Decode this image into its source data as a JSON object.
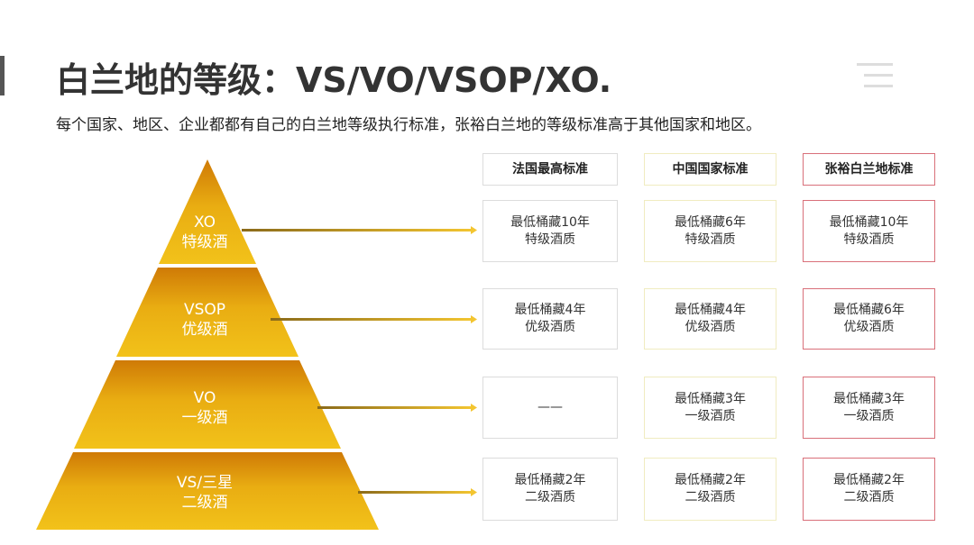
{
  "title": "白兰地的等级：VS/VO/VSOP/XO.",
  "subtitle": "每个国家、地区、企业都都有自己的白兰地等级执行标准，张裕白兰地的等级标准高于其他国家和地区。",
  "colors": {
    "pyramid_top": "#cf7a06",
    "pyramid_bottom": "#f2c21a",
    "china_border": "#f0ecc0",
    "zhangyu_border": "#d9707a"
  },
  "tiers": [
    {
      "grade": "XO",
      "name": "特级酒"
    },
    {
      "grade": "VSOP",
      "name": "优级酒"
    },
    {
      "grade": "VO",
      "name": "一级酒"
    },
    {
      "grade": "VS/三星",
      "name": "二级酒"
    }
  ],
  "columns": [
    "法国最高标准",
    "中国国家标准",
    "张裕白兰地标准"
  ],
  "rows": [
    [
      {
        "l1": "最低桶藏10年",
        "l2": "特级酒质"
      },
      {
        "l1": "最低桶藏6年",
        "l2": "特级酒质"
      },
      {
        "l1": "最低桶藏10年",
        "l2": "特级酒质"
      }
    ],
    [
      {
        "l1": "最低桶藏4年",
        "l2": "优级酒质"
      },
      {
        "l1": "最低桶藏4年",
        "l2": "优级酒质"
      },
      {
        "l1": "最低桶藏6年",
        "l2": "优级酒质"
      }
    ],
    [
      {
        "l1": "——",
        "l2": ""
      },
      {
        "l1": "最低桶藏3年",
        "l2": "一级酒质"
      },
      {
        "l1": "最低桶藏3年",
        "l2": "一级酒质"
      }
    ],
    [
      {
        "l1": "最低桶藏2年",
        "l2": "二级酒质"
      },
      {
        "l1": "最低桶藏2年",
        "l2": "二级酒质"
      },
      {
        "l1": "最低桶藏2年",
        "l2": "二级酒质"
      }
    ]
  ]
}
